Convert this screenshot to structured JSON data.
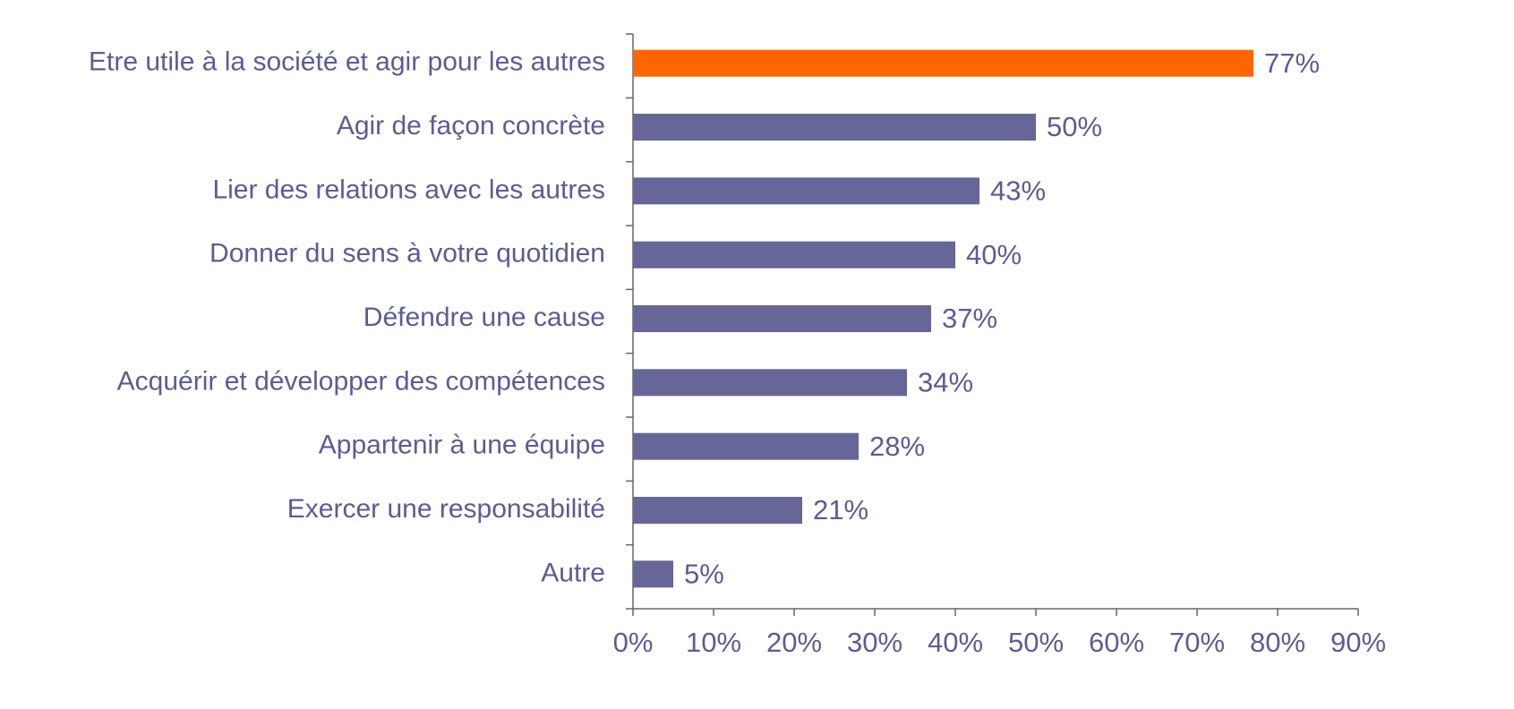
{
  "chart_data": {
    "type": "bar",
    "orientation": "horizontal",
    "categories": [
      "Etre utile à la société et agir pour les autres",
      "Agir de façon concrète",
      "Lier des relations avec les autres",
      "Donner du sens à votre quotidien",
      "Défendre une cause",
      "Acquérir et développer des compétences",
      "Appartenir à une équipe",
      "Exercer une responsabilité",
      "Autre"
    ],
    "values": [
      77,
      50,
      43,
      40,
      37,
      34,
      28,
      21,
      5
    ],
    "value_labels": [
      "77%",
      "50%",
      "43%",
      "40%",
      "37%",
      "34%",
      "28%",
      "21%",
      "5%"
    ],
    "colors": [
      "#ff6600",
      "#666699",
      "#666699",
      "#666699",
      "#666699",
      "#666699",
      "#666699",
      "#666699",
      "#666699"
    ],
    "xlim": [
      0,
      90
    ],
    "xticks": [
      {
        "value": 0,
        "label": "0%"
      },
      {
        "value": 10,
        "label": "10%"
      },
      {
        "value": 20,
        "label": "20%"
      },
      {
        "value": 30,
        "label": "30%"
      },
      {
        "value": 40,
        "label": "40%"
      },
      {
        "value": 50,
        "label": "50%"
      },
      {
        "value": 60,
        "label": "60%"
      },
      {
        "value": 70,
        "label": "70%"
      },
      {
        "value": 80,
        "label": "80%"
      },
      {
        "value": 90,
        "label": "90%"
      }
    ],
    "grid": false
  }
}
